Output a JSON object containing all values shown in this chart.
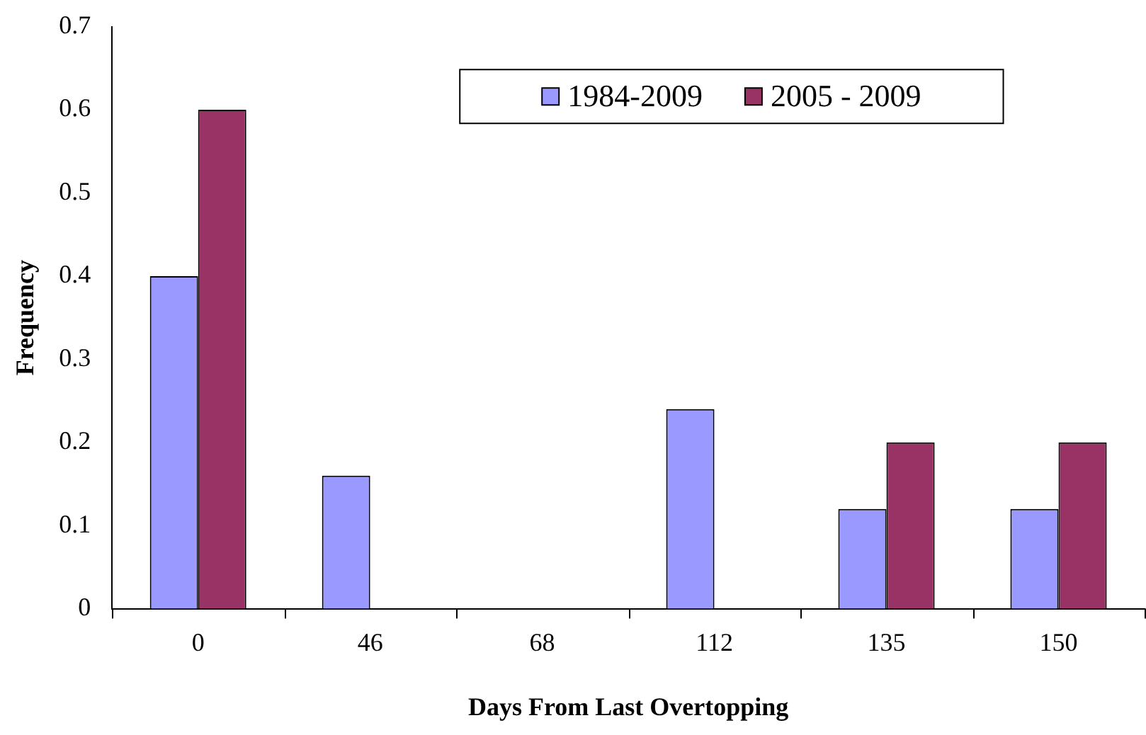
{
  "chart_data": {
    "type": "bar",
    "xlabel": "Days From Last Overtopping",
    "ylabel": "Frequency",
    "categories": [
      "0",
      "46",
      "68",
      "112",
      "135",
      "150"
    ],
    "series": [
      {
        "name": "1984-2009",
        "color": "#9999ff",
        "values": [
          0.4,
          0.16,
          0,
          0.24,
          0.12,
          0.12
        ]
      },
      {
        "name": "2005 - 2009",
        "color": "#993366",
        "values": [
          0.6,
          0,
          0,
          0,
          0.2,
          0.2
        ]
      }
    ],
    "ylim": [
      0,
      0.7
    ],
    "yticks": [
      0,
      0.1,
      0.2,
      0.3,
      0.4,
      0.5,
      0.6,
      0.7
    ],
    "grid": false,
    "legend": "top"
  }
}
